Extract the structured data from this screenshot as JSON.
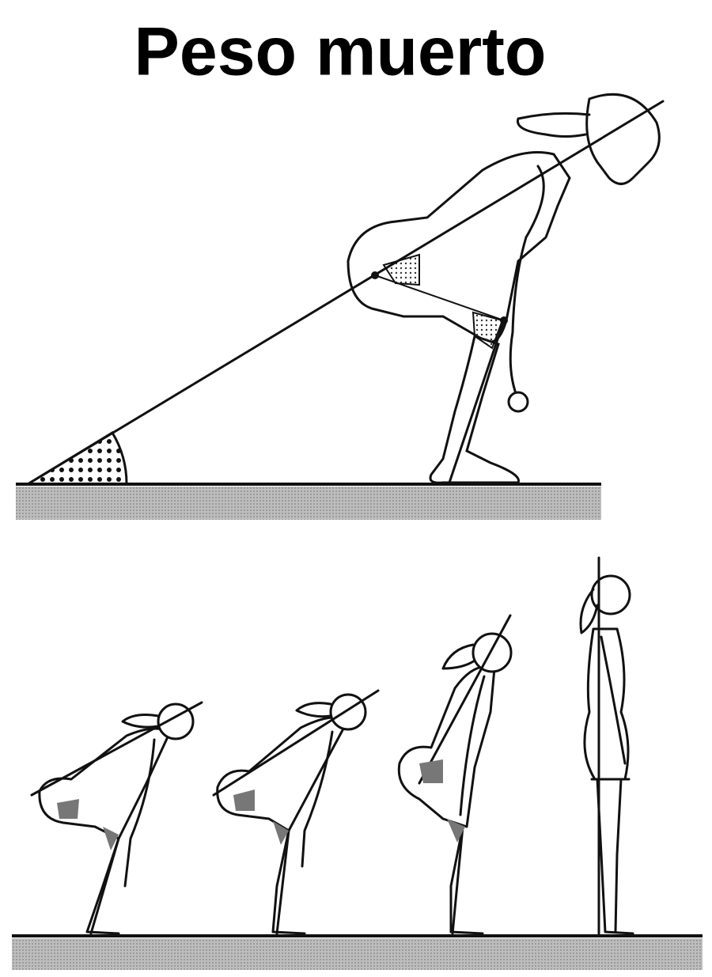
{
  "title": "Peso muerto"
}
